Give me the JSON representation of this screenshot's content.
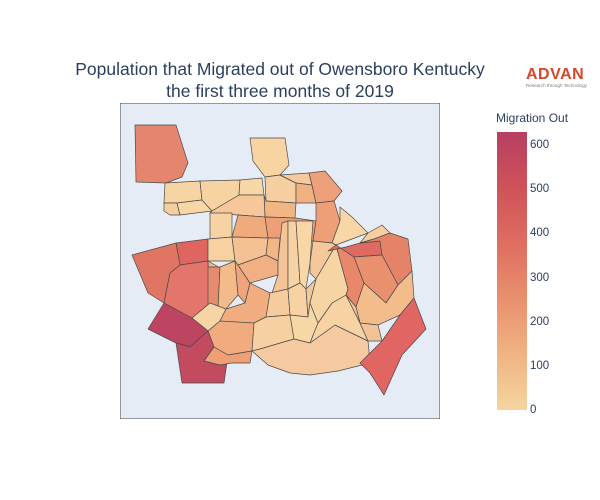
{
  "title": {
    "line1": "Population that Migrated out of Owensboro Kentucky",
    "line2": "the first three months of 2019"
  },
  "logo": {
    "text": "ADVAN",
    "tagline": "Research through Technology"
  },
  "legend": {
    "title": "Migration Out",
    "ticks": [
      "0",
      "100",
      "200",
      "300",
      "400",
      "500",
      "600"
    ],
    "min": 0,
    "max": 630,
    "colorscale": [
      "#f5d4a0",
      "#f0b383",
      "#e8906e",
      "#de6e61",
      "#cf5259",
      "#b73f61"
    ]
  },
  "map": {
    "background": "#e5ecf6",
    "border": "#444444"
  }
}
